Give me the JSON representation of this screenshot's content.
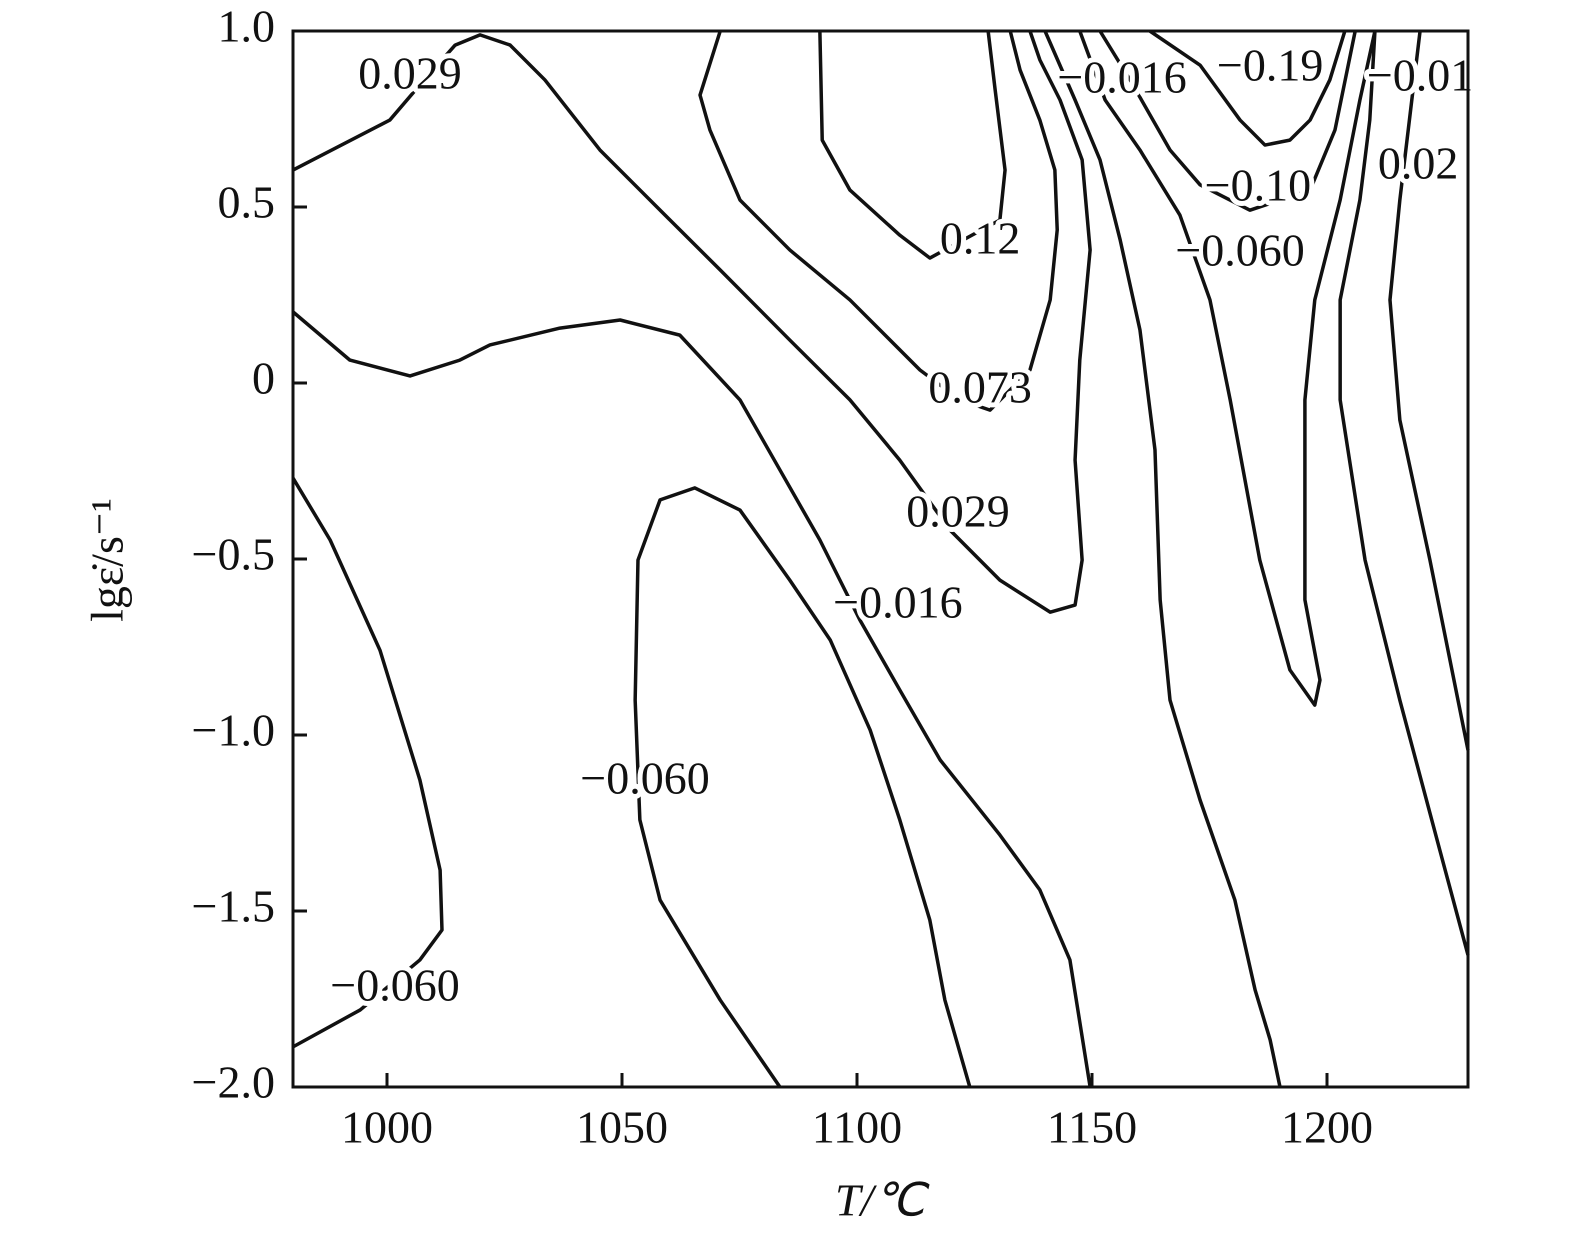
{
  "chart_data": {
    "type": "contour",
    "xlabel": "T/℃",
    "ylabel": "lgε̇/s⁻¹",
    "xlim": [
      980,
      1230
    ],
    "xticks": [
      1000,
      1050,
      1100,
      1150,
      1200
    ],
    "ylim": [
      -2,
      1
    ],
    "yticks": [
      {
        "value": -2,
        "label": "−2.0"
      },
      {
        "value": -1.5,
        "label": "−1.5"
      },
      {
        "value": -1,
        "label": "−1.0"
      },
      {
        "value": -0.5,
        "label": "−0.5"
      },
      0,
      0.5,
      {
        "value": 1,
        "label": "1.0"
      }
    ],
    "color": "#111111",
    "contours": [
      {
        "label": "0.029",
        "x": [
          980,
          1000.6,
          1007,
          1014.5,
          1019.8,
          1026.2,
          1033.6,
          1045.3,
          1058.1,
          1070.9,
          1085.7,
          1098.5,
          1109.1,
          1119.8,
          1130.4,
          1141.1,
          1146.4,
          1147.9,
          1146.4,
          1147.4,
          1149.6,
          1147.9,
          1143.2,
          1138.9,
          1136.8
        ],
        "y": [
          0.605,
          0.747,
          0.847,
          0.96,
          0.989,
          0.96,
          0.861,
          0.662,
          0.491,
          0.321,
          0.122,
          -0.048,
          -0.219,
          -0.418,
          -0.56,
          -0.651,
          -0.631,
          -0.503,
          -0.219,
          0.065,
          0.378,
          0.634,
          0.804,
          0.918,
          1.0
        ]
      },
      {
        "label": "0.073",
        "x": [
          1070.9,
          1066.6,
          1068.7,
          1075.1,
          1085.7,
          1098.5,
          1113.4,
          1121.9,
          1128.3,
          1136.8,
          1141.1,
          1142.6,
          1142.1,
          1138.9,
          1134.7,
          1132.6
        ],
        "y": [
          1.0,
          0.818,
          0.719,
          0.52,
          0.378,
          0.236,
          0.037,
          -0.048,
          -0.077,
          0.037,
          0.236,
          0.435,
          0.605,
          0.747,
          0.889,
          1.0
        ]
      },
      {
        "label": "0.12",
        "x": [
          1092.1,
          1092.6,
          1098.5,
          1109.1,
          1115.5,
          1130.4,
          1131.5,
          1129.4,
          1127.9
        ],
        "y": [
          1.0,
          0.69,
          0.548,
          0.42,
          0.355,
          0.463,
          0.605,
          0.832,
          1.0
        ]
      },
      {
        "label": "−0.016",
        "x": [
          980,
          992.1,
          1004.9,
          1015.5,
          1021.9,
          1036.8,
          1049.6,
          1062.3,
          1075.1,
          1083.6,
          1092.1,
          1100.6,
          1109.1,
          1117.7,
          1130.4,
          1138.9,
          1145.3,
          1149.6
        ],
        "y": [
          0.202,
          0.065,
          0.02,
          0.065,
          0.108,
          0.156,
          0.179,
          0.136,
          -0.048,
          -0.247,
          -0.446,
          -0.673,
          -0.872,
          -1.071,
          -1.284,
          -1.44,
          -1.639,
          -2.0
        ]
      },
      {
        "label": "−0.060",
        "x": [
          1083.6,
          1070.9,
          1058.1,
          1053.8,
          1052.8,
          1053.4,
          1058.1,
          1065.5,
          1075.1,
          1085.7,
          1094.3,
          1102.8,
          1109.1,
          1115.5,
          1118.7,
          1124.0
        ],
        "y": [
          -2.0,
          -1.753,
          -1.469,
          -1.241,
          -0.901,
          -0.503,
          -0.332,
          -0.298,
          -0.361,
          -0.56,
          -0.73,
          -0.986,
          -1.241,
          -1.526,
          -1.753,
          -2.0
        ]
      },
      {
        "label": "−0.060",
        "x": [
          980,
          987.9,
          998.5,
          1007.0,
          1011.3,
          1011.7,
          1007.0,
          994.3,
          980
        ],
        "y": [
          -0.27,
          -0.446,
          -0.759,
          -1.128,
          -1.384,
          -1.554,
          -1.639,
          -1.781,
          -1.886
        ]
      },
      {
        "label": "−0.016",
        "x": [
          1140.0,
          1146.4,
          1151.7,
          1156.0,
          1160.2,
          1163.4,
          1164.5,
          1166.6,
          1173.0,
          1180.4,
          1184.7,
          1187.9,
          1190.0
        ],
        "y": [
          1.0,
          0.804,
          0.634,
          0.406,
          0.151,
          -0.19,
          -0.616,
          -0.901,
          -1.185,
          -1.469,
          -1.724,
          -1.866,
          -2.0
        ]
      },
      {
        "label": "−0.060",
        "x": [
          1147.4,
          1152.8,
          1160.2,
          1168.7,
          1175.1,
          1179.4,
          1185.7,
          1192.1,
          1197.4,
          1198.5,
          1195.3,
          1195.3,
          1197.4,
          1202.8,
          1207.0,
          1210.2
        ],
        "y": [
          1.0,
          0.804,
          0.662,
          0.477,
          0.236,
          -0.048,
          -0.503,
          -0.815,
          -0.915,
          -0.844,
          -0.616,
          -0.048,
          0.236,
          0.52,
          0.804,
          1.0
        ]
      },
      {
        "label": "−0.10",
        "x": [
          1151.7,
          1158.1,
          1166.6,
          1173.0,
          1183.6,
          1196.4,
          1201.7,
          1206.0
        ],
        "y": [
          1.0,
          0.861,
          0.662,
          0.563,
          0.491,
          0.548,
          0.719,
          1.0
        ]
      },
      {
        "label": "−0.19",
        "x": [
          1162.3,
          1173.0,
          1181.5,
          1186.8,
          1192.1,
          1196.4,
          1200.6,
          1203.8
        ],
        "y": [
          1.0,
          0.903,
          0.747,
          0.676,
          0.69,
          0.747,
          0.861,
          1.0
        ]
      },
      {
        "label": "−0.01",
        "x": [
          1210.2,
          1209.1,
          1207.0,
          1202.8,
          1202.8,
          1208.1,
          1215.5,
          1224.0,
          1230
        ],
        "y": [
          1.0,
          0.747,
          0.52,
          0.236,
          -0.048,
          -0.503,
          -0.901,
          -1.327,
          -1.625
        ]
      },
      {
        "label": "0.02",
        "x": [
          1219.8,
          1215.5,
          1213.4,
          1215.5,
          1221.9,
          1230
        ],
        "y": [
          1.0,
          0.52,
          0.236,
          -0.105,
          -0.503,
          -1.043
        ]
      }
    ]
  }
}
